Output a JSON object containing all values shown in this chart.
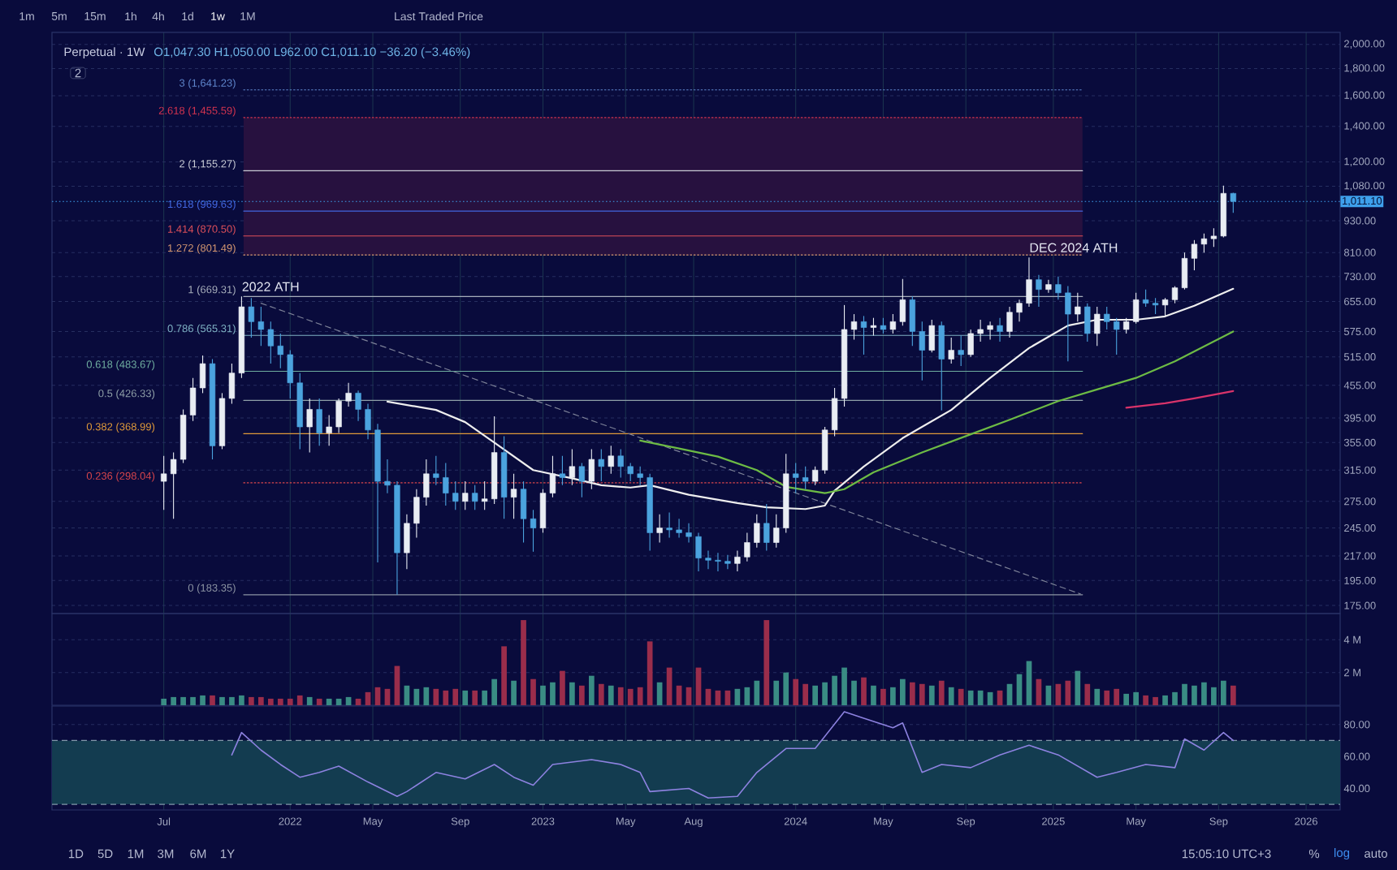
{
  "chart_data": [
    {
      "type": "candlestick",
      "title": "Perpetual · 1W",
      "subtitle": "O1,047.30 H1,050.00 L962.00 C1,011.10 −36.20 (−3.46%)",
      "annotations": [
        "1m",
        "5m",
        "15m",
        "1h",
        "4h",
        "1d",
        "1w",
        "1M",
        "Last Traded Price",
        "2",
        "1D",
        "5D",
        "1M",
        "3M",
        "6M",
        "1Y",
        "15:05:10 UTC+3",
        "%",
        "log",
        "auto",
        {
          "text": "2022 ATH",
          "x": "2021-10-25",
          "y": 669.31
        },
        {
          "text": "DEC 2024 ATH",
          "x": "2024-12-02",
          "y": 793
        }
      ],
      "x": [
        "2021-07-05",
        "2021-07-19",
        "2021-08-02",
        "2021-08-16",
        "2021-08-30",
        "2021-09-13",
        "2021-09-27",
        "2021-10-11",
        "2021-10-25",
        "2021-11-08",
        "2021-11-22",
        "2021-12-06",
        "2021-12-20",
        "2022-01-03",
        "2022-01-17",
        "2022-01-31",
        "2022-02-14",
        "2022-02-28",
        "2022-03-14",
        "2022-03-28",
        "2022-04-11",
        "2022-04-25",
        "2022-05-09",
        "2022-05-23",
        "2022-06-06",
        "2022-06-20",
        "2022-07-04",
        "2022-07-18",
        "2022-08-01",
        "2022-08-15",
        "2022-08-29",
        "2022-09-12",
        "2022-09-26",
        "2022-10-10",
        "2022-10-24",
        "2022-11-07",
        "2022-11-21",
        "2022-12-05",
        "2022-12-19",
        "2023-01-02",
        "2023-01-16",
        "2023-01-30",
        "2023-02-13",
        "2023-02-27",
        "2023-03-13",
        "2023-03-27",
        "2023-04-10",
        "2023-04-24",
        "2023-05-08",
        "2023-05-22",
        "2023-06-05",
        "2023-06-19",
        "2023-07-03",
        "2023-07-17",
        "2023-07-31",
        "2023-08-14",
        "2023-08-28",
        "2023-09-11",
        "2023-09-25",
        "2023-10-09",
        "2023-10-23",
        "2023-11-06",
        "2023-11-20",
        "2023-12-04",
        "2023-12-18",
        "2024-01-01",
        "2024-01-15",
        "2024-01-29",
        "2024-02-12",
        "2024-02-26",
        "2024-03-11",
        "2024-03-25",
        "2024-04-08",
        "2024-04-22",
        "2024-05-06",
        "2024-05-20",
        "2024-06-03",
        "2024-06-17",
        "2024-07-01",
        "2024-07-15",
        "2024-07-29",
        "2024-08-12",
        "2024-08-26",
        "2024-09-09",
        "2024-09-23",
        "2024-10-07",
        "2024-10-21",
        "2024-11-04",
        "2024-11-18",
        "2024-12-02",
        "2024-12-16",
        "2024-12-30",
        "2025-01-13",
        "2025-01-27",
        "2025-02-10",
        "2025-02-24",
        "2025-03-10",
        "2025-03-24",
        "2025-04-07",
        "2025-04-21",
        "2025-05-05",
        "2025-05-19",
        "2025-06-02",
        "2025-06-16",
        "2025-06-30",
        "2025-07-14",
        "2025-07-28",
        "2025-08-11",
        "2025-08-25",
        "2025-09-08",
        "2025-09-22"
      ],
      "ohlc": [
        [
          300,
          335,
          265,
          310
        ],
        [
          310,
          340,
          255,
          330
        ],
        [
          330,
          410,
          325,
          400
        ],
        [
          400,
          470,
          390,
          450
        ],
        [
          450,
          518,
          440,
          500
        ],
        [
          500,
          510,
          330,
          350
        ],
        [
          350,
          440,
          345,
          430
        ],
        [
          430,
          500,
          420,
          480
        ],
        [
          480,
          669.31,
          470,
          640
        ],
        [
          640,
          665,
          560,
          600
        ],
        [
          600,
          640,
          540,
          580
        ],
        [
          580,
          600,
          500,
          540
        ],
        [
          540,
          570,
          490,
          520
        ],
        [
          520,
          530,
          430,
          460
        ],
        [
          460,
          480,
          345,
          380
        ],
        [
          380,
          430,
          340,
          410
        ],
        [
          410,
          430,
          350,
          370
        ],
        [
          370,
          400,
          350,
          380
        ],
        [
          380,
          430,
          370,
          425
        ],
        [
          425,
          460,
          415,
          440
        ],
        [
          440,
          445,
          390,
          410
        ],
        [
          410,
          420,
          360,
          375
        ],
        [
          375,
          385,
          211,
          300
        ],
        [
          300,
          330,
          285,
          295
        ],
        [
          295,
          300,
          183.35,
          220
        ],
        [
          220,
          260,
          205,
          250
        ],
        [
          250,
          290,
          235,
          280
        ],
        [
          280,
          330,
          270,
          310
        ],
        [
          310,
          335,
          295,
          305
        ],
        [
          305,
          325,
          270,
          285
        ],
        [
          285,
          300,
          265,
          275
        ],
        [
          275,
          300,
          265,
          285
        ],
        [
          285,
          295,
          265,
          275
        ],
        [
          275,
          300,
          265,
          278
        ],
        [
          278,
          398,
          272,
          340
        ],
        [
          340,
          365,
          255,
          280
        ],
        [
          280,
          310,
          255,
          290
        ],
        [
          290,
          300,
          230,
          255
        ],
        [
          255,
          265,
          221,
          245
        ],
        [
          245,
          290,
          240,
          285
        ],
        [
          285,
          335,
          280,
          310
        ],
        [
          310,
          335,
          295,
          305
        ],
        [
          305,
          345,
          295,
          320
        ],
        [
          320,
          325,
          280,
          300
        ],
        [
          300,
          345,
          290,
          330
        ],
        [
          330,
          345,
          300,
          320
        ],
        [
          320,
          350,
          310,
          335
        ],
        [
          335,
          345,
          305,
          320
        ],
        [
          320,
          325,
          300,
          310
        ],
        [
          310,
          320,
          295,
          305
        ],
        [
          305,
          310,
          222,
          240
        ],
        [
          240,
          260,
          230,
          245
        ],
        [
          245,
          262,
          235,
          243
        ],
        [
          243,
          255,
          235,
          240
        ],
        [
          240,
          250,
          230,
          236
        ],
        [
          236,
          240,
          203,
          215
        ],
        [
          215,
          222,
          205,
          213
        ],
        [
          213,
          220,
          203,
          212
        ],
        [
          212,
          218,
          205,
          210
        ],
        [
          210,
          222,
          203,
          216
        ],
        [
          216,
          240,
          212,
          230
        ],
        [
          230,
          260,
          225,
          250
        ],
        [
          250,
          272,
          222,
          230
        ],
        [
          230,
          260,
          225,
          245
        ],
        [
          245,
          338,
          240,
          310
        ],
        [
          310,
          325,
          285,
          305
        ],
        [
          305,
          320,
          290,
          300
        ],
        [
          300,
          320,
          295,
          315
        ],
        [
          315,
          380,
          310,
          375
        ],
        [
          375,
          450,
          365,
          430
        ],
        [
          430,
          645,
          415,
          580
        ],
        [
          580,
          620,
          555,
          600
        ],
        [
          600,
          615,
          520,
          585
        ],
        [
          585,
          610,
          565,
          590
        ],
        [
          590,
          610,
          570,
          580
        ],
        [
          580,
          620,
          570,
          600
        ],
        [
          600,
          722,
          590,
          660
        ],
        [
          660,
          670,
          540,
          575
        ],
        [
          575,
          600,
          465,
          530
        ],
        [
          530,
          605,
          525,
          590
        ],
        [
          590,
          600,
          408,
          510
        ],
        [
          510,
          560,
          500,
          530
        ],
        [
          530,
          565,
          495,
          520
        ],
        [
          520,
          580,
          515,
          570
        ],
        [
          570,
          605,
          550,
          580
        ],
        [
          580,
          600,
          555,
          590
        ],
        [
          590,
          610,
          550,
          575
        ],
        [
          575,
          640,
          560,
          625
        ],
        [
          625,
          660,
          600,
          650
        ],
        [
          650,
          793,
          640,
          720
        ],
        [
          720,
          735,
          640,
          690
        ],
        [
          690,
          720,
          680,
          705
        ],
        [
          705,
          730,
          660,
          680
        ],
        [
          680,
          700,
          505,
          620
        ],
        [
          620,
          680,
          600,
          640
        ],
        [
          640,
          650,
          550,
          570
        ],
        [
          570,
          640,
          540,
          620
        ],
        [
          620,
          640,
          580,
          600
        ],
        [
          600,
          610,
          520,
          580
        ],
        [
          580,
          610,
          570,
          600
        ],
        [
          600,
          680,
          595,
          660
        ],
        [
          660,
          690,
          640,
          650
        ],
        [
          650,
          665,
          620,
          645
        ],
        [
          645,
          665,
          615,
          660
        ],
        [
          660,
          700,
          650,
          695
        ],
        [
          695,
          810,
          690,
          790
        ],
        [
          790,
          855,
          750,
          840
        ],
        [
          840,
          880,
          810,
          860
        ],
        [
          860,
          900,
          830,
          870
        ],
        [
          870,
          1083,
          865,
          1047.3
        ],
        [
          1047.3,
          1050,
          962,
          1011.1
        ]
      ],
      "colors": [
        "#e9edf3",
        "#e9edf3",
        "#e9edf3",
        "#e9edf3",
        "#e9edf3",
        "#4ba3de",
        "#e9edf3",
        "#e9edf3",
        "#e9edf3",
        "#4ba3de",
        "#4ba3de",
        "#4ba3de",
        "#4ba3de",
        "#4ba3de",
        "#4ba3de",
        "#e9edf3",
        "#4ba3de",
        "#e9edf3",
        "#e9edf3",
        "#e9edf3",
        "#4ba3de",
        "#4ba3de",
        "#4ba3de",
        "#4ba3de",
        "#4ba3de",
        "#e9edf3",
        "#e9edf3",
        "#e9edf3",
        "#4ba3de",
        "#4ba3de",
        "#4ba3de",
        "#e9edf3",
        "#4ba3de",
        "#e9edf3",
        "#e9edf3",
        "#4ba3de",
        "#e9edf3",
        "#4ba3de",
        "#4ba3de",
        "#e9edf3",
        "#e9edf3",
        "#4ba3de",
        "#e9edf3",
        "#4ba3de",
        "#e9edf3",
        "#4ba3de",
        "#e9edf3",
        "#4ba3de",
        "#4ba3de",
        "#4ba3de",
        "#4ba3de",
        "#e9edf3",
        "#4ba3de",
        "#4ba3de",
        "#4ba3de",
        "#4ba3de",
        "#4ba3de",
        "#4ba3de",
        "#4ba3de",
        "#e9edf3",
        "#e9edf3",
        "#e9edf3",
        "#4ba3de",
        "#e9edf3",
        "#e9edf3",
        "#4ba3de",
        "#4ba3de",
        "#e9edf3",
        "#e9edf3",
        "#e9edf3",
        "#e9edf3",
        "#e9edf3",
        "#4ba3de",
        "#e9edf3",
        "#4ba3de",
        "#e9edf3",
        "#e9edf3",
        "#4ba3de",
        "#4ba3de",
        "#e9edf3",
        "#4ba3de",
        "#e9edf3",
        "#4ba3de",
        "#e9edf3",
        "#e9edf3",
        "#e9edf3",
        "#4ba3de",
        "#e9edf3",
        "#e9edf3",
        "#e9edf3",
        "#4ba3de",
        "#e9edf3",
        "#4ba3de",
        "#4ba3de",
        "#e9edf3",
        "#4ba3de",
        "#e9edf3",
        "#4ba3de",
        "#4ba3de",
        "#e9edf3",
        "#e9edf3",
        "#4ba3de",
        "#4ba3de",
        "#e9edf3",
        "#e9edf3",
        "#e9edf3",
        "#e9edf3",
        "#e9edf3",
        "#e9edf3",
        "#e9edf3",
        "#4ba3de"
      ],
      "series": [
        {
          "type": "line",
          "name": "3 (1,641.23)",
          "color": "#5f86cc",
          "line_style": "dotted",
          "x": [
            "2021-10-28",
            "2025-02-17"
          ],
          "values": [
            1641.23,
            1641.23
          ]
        },
        {
          "type": "line",
          "name": "2.618 (1,455.59)",
          "color": "#d2334f",
          "line_style": "dotted",
          "x": [
            "2021-10-28",
            "2025-02-17"
          ],
          "values": [
            1455.59,
            1455.59
          ],
          "lower": [
            801.49,
            801.49
          ],
          "upper": [
            1455.59,
            1455.59
          ]
        },
        {
          "type": "line",
          "name": "2 (1,155.27)",
          "color": "#c9ccd6",
          "x": [
            "2021-10-28",
            "2025-02-17"
          ],
          "values": [
            1155.27,
            1155.27
          ]
        },
        {
          "type": "line",
          "name": "1.618 (969.63)",
          "color": "#4266e0",
          "x": [
            "2021-10-28",
            "2025-02-17"
          ],
          "values": [
            969.63,
            969.63
          ]
        },
        {
          "type": "line",
          "name": "1.414 (870.50)",
          "color": "#e0505a",
          "x": [
            "2021-10-28",
            "2025-02-17"
          ],
          "values": [
            870.5,
            870.5
          ]
        },
        {
          "type": "line",
          "name": "1.272 (801.49)",
          "color": "#d99a72",
          "line_style": "dotted",
          "x": [
            "2021-10-28",
            "2025-02-17"
          ],
          "values": [
            801.49,
            801.49
          ]
        },
        {
          "type": "line",
          "name": "1 (669.31)",
          "color": "#a7aebb",
          "x": [
            "2021-10-28",
            "2025-02-17"
          ],
          "values": [
            669.31,
            669.31
          ]
        },
        {
          "type": "line",
          "name": "0.786 (565.31)",
          "color": "#7fb3c4",
          "x": [
            "2021-10-28",
            "2025-02-17"
          ],
          "values": [
            565.31,
            565.31
          ]
        },
        {
          "type": "line",
          "name": "0.618 (483.67)",
          "color": "#6fae9f",
          "x": [
            "2021-10-28",
            "2025-02-17"
          ],
          "values": [
            483.67,
            483.67
          ]
        },
        {
          "type": "line",
          "name": "0.5 (426.33)",
          "color": "#8fa0a8",
          "x": [
            "2021-10-28",
            "2025-02-17"
          ],
          "values": [
            426.33,
            426.33
          ]
        },
        {
          "type": "line",
          "name": "0.382 (368.99)",
          "color": "#e09a3a",
          "x": [
            "2021-10-28",
            "2025-02-17"
          ],
          "values": [
            368.99,
            368.99
          ]
        },
        {
          "type": "line",
          "name": "0.236 (298.04)",
          "color": "#d9464c",
          "line_style": "dotted",
          "x": [
            "2021-10-28",
            "2025-02-17"
          ],
          "values": [
            298.04,
            298.04
          ]
        },
        {
          "type": "line",
          "name": "0 (183.35)",
          "color": "#8b93a2",
          "x": [
            "2021-10-28",
            "2025-02-17"
          ],
          "values": [
            183.35,
            183.35
          ]
        },
        {
          "type": "line",
          "color": "#7d8298",
          "line_style": "dashed",
          "x": [
            "2021-11-22",
            "2025-02-14"
          ],
          "values": [
            650,
            184
          ]
        },
        {
          "type": "line",
          "color": "#eeeeee",
          "x": [
            "2022-05-23",
            "2022-08-01",
            "2022-09-12",
            "2022-10-24",
            "2022-12-19",
            "2023-02-13",
            "2023-03-27",
            "2023-05-08",
            "2023-06-05",
            "2023-07-31",
            "2023-10-09",
            "2023-11-20",
            "2024-01-15",
            "2024-02-12",
            "2024-02-26",
            "2024-04-08",
            "2024-06-03",
            "2024-08-12",
            "2024-10-07",
            "2024-12-02",
            "2025-01-27",
            "2025-03-10",
            "2025-05-05",
            "2025-06-16",
            "2025-07-28",
            "2025-09-22"
          ],
          "values": [
            424,
            409,
            388,
            355,
            315,
            304,
            295,
            292,
            295,
            283,
            273,
            268,
            266,
            270,
            288,
            320,
            362,
            409,
            470,
            535,
            590,
            605,
            605,
            614,
            643,
            692
          ]
        },
        {
          "type": "line",
          "color": "#6dbb45",
          "x": [
            "2023-05-22",
            "2023-07-17",
            "2023-09-11",
            "2023-11-06",
            "2023-12-18",
            "2024-02-12",
            "2024-03-11",
            "2024-04-22",
            "2024-07-01",
            "2024-09-09",
            "2024-11-04",
            "2025-01-13",
            "2025-03-10",
            "2025-05-05",
            "2025-06-30",
            "2025-09-22"
          ],
          "values": [
            358,
            346,
            334,
            315,
            293,
            285,
            290,
            312,
            340,
            368,
            392,
            425,
            447,
            470,
            505,
            575
          ]
        },
        {
          "type": "line",
          "color": "#d9336a",
          "x": [
            "2025-04-21",
            "2025-06-16",
            "2025-07-28",
            "2025-09-22"
          ],
          "values": [
            413,
            421,
            430,
            444
          ]
        }
      ],
      "ref_lines": [
        {
          "axis": "y",
          "value": 1011.1,
          "label": "1,011.10",
          "color": "#3ea0ec",
          "line_style": "dotted"
        }
      ],
      "xlim": [
        "2021-01-25",
        "2026-02-23"
      ],
      "xticks": [
        {
          "value": "2021-07-05",
          "label": null
        },
        {
          "value": "2022-01-03",
          "label": null
        },
        {
          "value": "2022-05-02",
          "label": null
        },
        {
          "value": "2022-09-05",
          "label": null
        },
        {
          "value": "2023-01-02",
          "label": null
        },
        {
          "value": "2023-05-01",
          "label": null
        },
        {
          "value": "2023-08-07",
          "label": null
        },
        {
          "value": "2024-01-01",
          "label": null
        },
        {
          "value": "2024-05-06",
          "label": null
        },
        {
          "value": "2024-09-02",
          "label": null
        },
        {
          "value": "2025-01-06",
          "label": null
        },
        {
          "value": "2025-05-05",
          "label": null
        },
        {
          "value": "2025-09-01",
          "label": null
        },
        {
          "value": "2026-01-05",
          "label": null
        }
      ],
      "ylim": [
        169,
        2106
      ],
      "yticks": [
        {
          "value": 175,
          "label": "175.00"
        },
        {
          "value": 195,
          "label": "195.00"
        },
        {
          "value": 217,
          "label": "217.00"
        },
        {
          "value": 245,
          "label": "245.00"
        },
        {
          "value": 275,
          "label": "275.00"
        },
        {
          "value": 315,
          "label": "315.00"
        },
        {
          "value": 355,
          "label": "355.00"
        },
        {
          "value": 395,
          "label": "395.00"
        },
        {
          "value": 455,
          "label": "455.00"
        },
        {
          "value": 515,
          "label": "515.00"
        },
        {
          "value": 575,
          "label": "575.00"
        },
        {
          "value": 655,
          "label": "655.00"
        },
        {
          "value": 730,
          "label": "730.00"
        },
        {
          "value": 810,
          "label": "810.00"
        },
        {
          "value": 930,
          "label": "930.00"
        },
        {
          "value": 1080,
          "label": "1,080.00"
        },
        {
          "value": 1200,
          "label": "1,200.00"
        },
        {
          "value": 1400,
          "label": "1,400.00"
        },
        {
          "value": 1600,
          "label": "1,600.00"
        },
        {
          "value": 1800,
          "label": "1,800.00"
        },
        {
          "value": 2000,
          "label": "2,000.00"
        }
      ],
      "log": true,
      "grid": true,
      "tick_labels": "y"
    },
    {
      "type": "bar",
      "x": [
        "2021-07-05",
        "2021-07-19",
        "2021-08-02",
        "2021-08-16",
        "2021-08-30",
        "2021-09-13",
        "2021-09-27",
        "2021-10-11",
        "2021-10-25",
        "2021-11-08",
        "2021-11-22",
        "2021-12-06",
        "2021-12-20",
        "2022-01-03",
        "2022-01-17",
        "2022-01-31",
        "2022-02-14",
        "2022-02-28",
        "2022-03-14",
        "2022-03-28",
        "2022-04-11",
        "2022-04-25",
        "2022-05-09",
        "2022-05-23",
        "2022-06-06",
        "2022-06-20",
        "2022-07-04",
        "2022-07-18",
        "2022-08-01",
        "2022-08-15",
        "2022-08-29",
        "2022-09-12",
        "2022-09-26",
        "2022-10-10",
        "2022-10-24",
        "2022-11-07",
        "2022-11-21",
        "2022-12-05",
        "2022-12-19",
        "2023-01-02",
        "2023-01-16",
        "2023-01-30",
        "2023-02-13",
        "2023-02-27",
        "2023-03-13",
        "2023-03-27",
        "2023-04-10",
        "2023-04-24",
        "2023-05-08",
        "2023-05-22",
        "2023-06-05",
        "2023-06-19",
        "2023-07-03",
        "2023-07-17",
        "2023-07-31",
        "2023-08-14",
        "2023-08-28",
        "2023-09-11",
        "2023-09-25",
        "2023-10-09",
        "2023-10-23",
        "2023-11-06",
        "2023-11-20",
        "2023-12-04",
        "2023-12-18",
        "2024-01-01",
        "2024-01-15",
        "2024-01-29",
        "2024-02-12",
        "2024-02-26",
        "2024-03-11",
        "2024-03-25",
        "2024-04-08",
        "2024-04-22",
        "2024-05-06",
        "2024-05-20",
        "2024-06-03",
        "2024-06-17",
        "2024-07-01",
        "2024-07-15",
        "2024-07-29",
        "2024-08-12",
        "2024-08-26",
        "2024-09-09",
        "2024-09-23",
        "2024-10-07",
        "2024-10-21",
        "2024-11-04",
        "2024-11-18",
        "2024-12-02",
        "2024-12-16",
        "2024-12-30",
        "2025-01-13",
        "2025-01-27",
        "2025-02-10",
        "2025-02-24",
        "2025-03-10",
        "2025-03-24",
        "2025-04-07",
        "2025-04-21",
        "2025-05-05",
        "2025-05-19",
        "2025-06-02",
        "2025-06-16",
        "2025-06-30",
        "2025-07-14",
        "2025-07-28",
        "2025-08-11",
        "2025-08-25",
        "2025-09-08",
        "2025-09-22"
      ],
      "values": [
        0.4,
        0.5,
        0.5,
        0.5,
        0.6,
        0.6,
        0.5,
        0.5,
        0.6,
        0.5,
        0.5,
        0.4,
        0.4,
        0.4,
        0.6,
        0.5,
        0.4,
        0.4,
        0.4,
        0.5,
        0.4,
        0.8,
        1.1,
        1.0,
        2.4,
        1.2,
        1.0,
        1.1,
        1.0,
        0.9,
        1.0,
        0.9,
        0.9,
        0.9,
        1.6,
        3.6,
        1.5,
        5.2,
        1.6,
        1.2,
        1.4,
        2.1,
        1.4,
        1.2,
        1.8,
        1.3,
        1.2,
        1.1,
        1.0,
        1.1,
        3.9,
        1.4,
        2.3,
        1.2,
        1.1,
        2.3,
        1.0,
        0.9,
        0.9,
        1.0,
        1.1,
        1.5,
        5.2,
        1.5,
        2.0,
        1.6,
        1.3,
        1.2,
        1.4,
        1.8,
        2.3,
        1.5,
        1.7,
        1.2,
        1.0,
        1.1,
        1.6,
        1.4,
        1.3,
        1.2,
        1.5,
        1.1,
        1.0,
        0.9,
        0.9,
        0.8,
        0.9,
        1.3,
        1.9,
        2.7,
        1.6,
        1.2,
        1.3,
        1.5,
        2.1,
        1.3,
        1.0,
        0.9,
        1.0,
        0.7,
        0.8,
        0.6,
        0.5,
        0.6,
        0.8,
        1.3,
        1.2,
        1.4,
        1.1,
        1.5,
        1.2
      ],
      "colors": [
        "#3a8c84",
        "#3a8c84",
        "#3a8c84",
        "#3a8c84",
        "#3a8c84",
        "#9a2d4b",
        "#3a8c84",
        "#3a8c84",
        "#3a8c84",
        "#9a2d4b",
        "#9a2d4b",
        "#9a2d4b",
        "#9a2d4b",
        "#9a2d4b",
        "#9a2d4b",
        "#3a8c84",
        "#9a2d4b",
        "#3a8c84",
        "#3a8c84",
        "#3a8c84",
        "#9a2d4b",
        "#9a2d4b",
        "#9a2d4b",
        "#9a2d4b",
        "#9a2d4b",
        "#3a8c84",
        "#3a8c84",
        "#3a8c84",
        "#9a2d4b",
        "#9a2d4b",
        "#9a2d4b",
        "#3a8c84",
        "#9a2d4b",
        "#3a8c84",
        "#3a8c84",
        "#9a2d4b",
        "#3a8c84",
        "#9a2d4b",
        "#9a2d4b",
        "#3a8c84",
        "#3a8c84",
        "#9a2d4b",
        "#3a8c84",
        "#9a2d4b",
        "#3a8c84",
        "#9a2d4b",
        "#3a8c84",
        "#9a2d4b",
        "#9a2d4b",
        "#9a2d4b",
        "#9a2d4b",
        "#3a8c84",
        "#9a2d4b",
        "#9a2d4b",
        "#9a2d4b",
        "#9a2d4b",
        "#9a2d4b",
        "#9a2d4b",
        "#9a2d4b",
        "#3a8c84",
        "#3a8c84",
        "#3a8c84",
        "#9a2d4b",
        "#3a8c84",
        "#3a8c84",
        "#9a2d4b",
        "#9a2d4b",
        "#3a8c84",
        "#3a8c84",
        "#3a8c84",
        "#3a8c84",
        "#3a8c84",
        "#9a2d4b",
        "#3a8c84",
        "#9a2d4b",
        "#3a8c84",
        "#3a8c84",
        "#9a2d4b",
        "#9a2d4b",
        "#3a8c84",
        "#9a2d4b",
        "#3a8c84",
        "#9a2d4b",
        "#3a8c84",
        "#3a8c84",
        "#3a8c84",
        "#9a2d4b",
        "#3a8c84",
        "#3a8c84",
        "#3a8c84",
        "#9a2d4b",
        "#3a8c84",
        "#9a2d4b",
        "#9a2d4b",
        "#3a8c84",
        "#9a2d4b",
        "#3a8c84",
        "#9a2d4b",
        "#9a2d4b",
        "#3a8c84",
        "#3a8c84",
        "#9a2d4b",
        "#9a2d4b",
        "#3a8c84",
        "#3a8c84",
        "#3a8c84",
        "#3a8c84",
        "#3a8c84",
        "#3a8c84",
        "#3a8c84",
        "#9a2d4b"
      ],
      "xlim": [
        "2021-01-25",
        "2026-02-23"
      ],
      "xticks": [
        {
          "value": "2021-07-05",
          "label": null
        },
        {
          "value": "2022-01-03",
          "label": null
        },
        {
          "value": "2022-05-02",
          "label": null
        },
        {
          "value": "2022-09-05",
          "label": null
        },
        {
          "value": "2023-01-02",
          "label": null
        },
        {
          "value": "2023-05-01",
          "label": null
        },
        {
          "value": "2023-08-07",
          "label": null
        },
        {
          "value": "2024-01-01",
          "label": null
        },
        {
          "value": "2024-05-06",
          "label": null
        },
        {
          "value": "2024-09-02",
          "label": null
        },
        {
          "value": "2025-01-06",
          "label": null
        },
        {
          "value": "2025-05-05",
          "label": null
        },
        {
          "value": "2025-09-01",
          "label": null
        },
        {
          "value": "2026-01-05",
          "label": null
        }
      ],
      "ylim": [
        0,
        5.6
      ],
      "yticks": [
        {
          "value": 2,
          "label": "2 M"
        },
        {
          "value": 4,
          "label": "4 M"
        }
      ],
      "grid": true,
      "tick_labels": "y"
    },
    {
      "type": "line",
      "x": [
        "2021-10-11",
        "2021-10-25",
        "2021-11-22",
        "2021-12-20",
        "2022-01-17",
        "2022-02-14",
        "2022-03-14",
        "2022-04-25",
        "2022-06-06",
        "2022-06-20",
        "2022-08-01",
        "2022-09-12",
        "2022-10-24",
        "2022-11-21",
        "2022-12-19",
        "2023-01-16",
        "2023-03-13",
        "2023-04-24",
        "2023-05-22",
        "2023-06-05",
        "2023-07-31",
        "2023-08-28",
        "2023-10-09",
        "2023-11-06",
        "2023-12-18",
        "2024-01-29",
        "2024-03-11",
        "2024-04-08",
        "2024-05-20",
        "2024-06-03",
        "2024-07-01",
        "2024-07-29",
        "2024-09-09",
        "2024-10-21",
        "2024-12-02",
        "2025-01-13",
        "2025-03-10",
        "2025-04-07",
        "2025-05-19",
        "2025-06-30",
        "2025-07-14",
        "2025-08-11",
        "2025-09-08",
        "2025-09-22"
      ],
      "values": [
        61,
        75,
        64,
        55,
        47,
        50,
        54,
        44,
        35,
        38,
        50,
        46,
        55,
        47,
        42,
        55,
        58,
        55,
        50,
        38,
        40,
        34,
        35,
        50,
        65,
        65,
        88,
        84,
        78,
        81,
        50,
        55,
        53,
        61,
        67,
        61,
        47,
        50,
        55,
        53,
        71,
        64,
        75,
        70
      ],
      "color": "#8d82e0",
      "bands": [
        {
          "axis": "y",
          "from": 30,
          "to": 70,
          "color": "#133c50"
        }
      ],
      "ref_lines": [
        {
          "axis": "y",
          "value": 70,
          "color": "#8196a8",
          "line_style": "dashed"
        },
        {
          "axis": "y",
          "value": 30,
          "color": "#8196a8",
          "line_style": "dashed"
        }
      ],
      "xlim": [
        "2021-01-25",
        "2026-02-23"
      ],
      "xticks": [
        {
          "value": "2021-07-05",
          "label": "Jul"
        },
        {
          "value": "2022-01-03",
          "label": "2022"
        },
        {
          "value": "2022-05-02",
          "label": "May"
        },
        {
          "value": "2022-09-05",
          "label": "Sep"
        },
        {
          "value": "2023-01-02",
          "label": "2023"
        },
        {
          "value": "2023-05-01",
          "label": "May"
        },
        {
          "value": "2023-08-07",
          "label": "Aug"
        },
        {
          "value": "2024-01-01",
          "label": "2024"
        },
        {
          "value": "2024-05-06",
          "label": "May"
        },
        {
          "value": "2024-09-02",
          "label": "Sep"
        },
        {
          "value": "2025-01-06",
          "label": "2025"
        },
        {
          "value": "2025-05-05",
          "label": "May"
        },
        {
          "value": "2025-09-01",
          "label": "Sep"
        },
        {
          "value": "2026-01-05",
          "label": "2026"
        }
      ],
      "ylim": [
        26.5,
        91.6
      ],
      "yticks": [
        {
          "value": 40,
          "label": "40.00"
        },
        {
          "value": 60,
          "label": "60.00"
        },
        {
          "value": 80,
          "label": "80.00"
        }
      ],
      "grid": true
    }
  ]
}
